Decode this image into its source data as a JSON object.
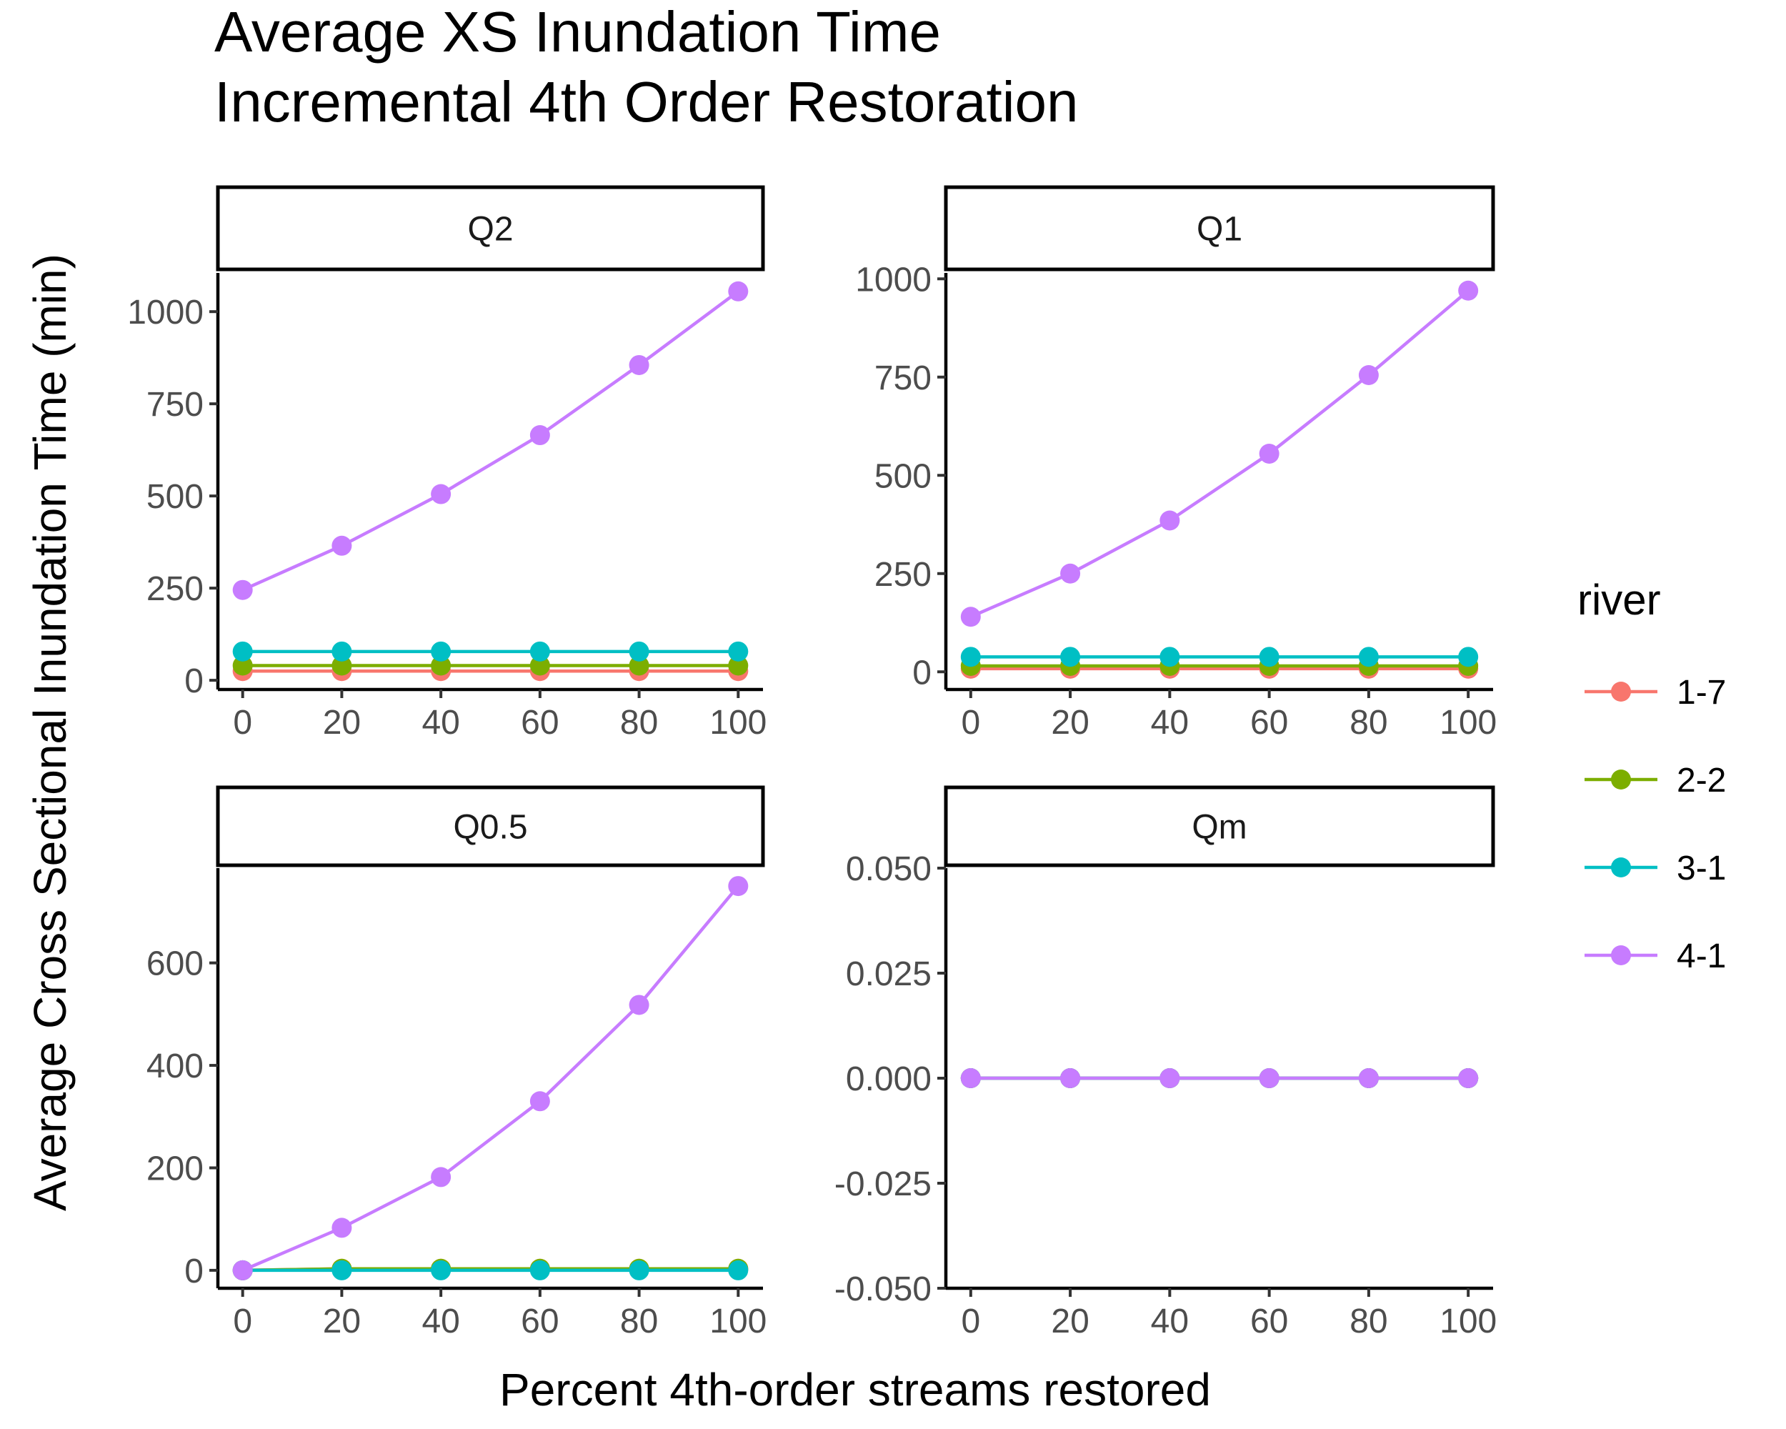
{
  "chart_data": {
    "type": "line",
    "title_lines": [
      "Average XS Inundation Time",
      " Incremental 4th Order Restoration"
    ],
    "xlabel": "Percent 4th-order streams restored",
    "ylabel": "Average Cross Sectional Inundation Time (min)",
    "legend": {
      "title": "river",
      "placement": "right",
      "entries": [
        {
          "label": "1-7",
          "color": "#F8766D"
        },
        {
          "label": "2-2",
          "color": "#7CAE00"
        },
        {
          "label": "3-1",
          "color": "#00BFC4"
        },
        {
          "label": "4-1",
          "color": "#C77CFF"
        }
      ]
    },
    "x": [
      0,
      20,
      40,
      60,
      80,
      100
    ],
    "x_ticks": [
      "0",
      "20",
      "40",
      "60",
      "80",
      "100"
    ],
    "xlim": [
      -5,
      105
    ],
    "panels": [
      {
        "label": "Q2",
        "ylim": [
          -25,
          1105
        ],
        "y_ticks": [
          0,
          250,
          500,
          750,
          1000
        ],
        "y_tick_labels": [
          "0",
          "250",
          "500",
          "750",
          "1000"
        ],
        "series": [
          {
            "name": "1-7",
            "values": [
              25,
              25,
              25,
              25,
              25,
              25
            ]
          },
          {
            "name": "2-2",
            "values": [
              40,
              40,
              40,
              40,
              40,
              40
            ]
          },
          {
            "name": "3-1",
            "values": [
              78,
              78,
              78,
              78,
              78,
              78
            ]
          },
          {
            "name": "4-1",
            "values": [
              245,
              365,
              505,
              665,
              855,
              1055
            ]
          }
        ]
      },
      {
        "label": "Q1",
        "ylim": [
          -45,
          1015
        ],
        "y_ticks": [
          0,
          250,
          500,
          750,
          1000
        ],
        "y_tick_labels": [
          "0",
          "250",
          "500",
          "750",
          "1000"
        ],
        "series": [
          {
            "name": "1-7",
            "values": [
              8,
              8,
              8,
              8,
              8,
              8
            ]
          },
          {
            "name": "2-2",
            "values": [
              15,
              15,
              15,
              15,
              15,
              15
            ]
          },
          {
            "name": "3-1",
            "values": [
              38,
              38,
              38,
              38,
              38,
              38
            ]
          },
          {
            "name": "4-1",
            "values": [
              140,
              250,
              385,
              555,
              755,
              970
            ]
          }
        ]
      },
      {
        "label": "Q0.5",
        "ylim": [
          -35,
          785
        ],
        "y_ticks": [
          0,
          200,
          400,
          600
        ],
        "y_tick_labels": [
          "0",
          "200",
          "400",
          "600"
        ],
        "series": [
          {
            "name": "1-7",
            "values": [
              0,
              3,
              3,
              3,
              3,
              3
            ]
          },
          {
            "name": "2-2",
            "values": [
              0,
              3,
              3,
              3,
              3,
              3
            ]
          },
          {
            "name": "3-1",
            "values": [
              0,
              0,
              0,
              0,
              0,
              0
            ]
          },
          {
            "name": "4-1",
            "values": [
              0,
              83,
              182,
              330,
              518,
              750
            ]
          }
        ]
      },
      {
        "label": "Qm",
        "ylim": [
          -0.05,
          0.05
        ],
        "y_ticks": [
          -0.05,
          -0.025,
          0,
          0.025,
          0.05
        ],
        "y_tick_labels": [
          "-0.050",
          "-0.025",
          "0.000",
          "0.025",
          "0.050"
        ],
        "series": [
          {
            "name": "1-7",
            "values": [
              0,
              0,
              0,
              0,
              0,
              0
            ]
          },
          {
            "name": "2-2",
            "values": [
              0,
              0,
              0,
              0,
              0,
              0
            ]
          },
          {
            "name": "3-1",
            "values": [
              0,
              0,
              0,
              0,
              0,
              0
            ]
          },
          {
            "name": "4-1",
            "values": [
              0,
              0,
              0,
              0,
              0,
              0
            ]
          }
        ]
      }
    ]
  }
}
